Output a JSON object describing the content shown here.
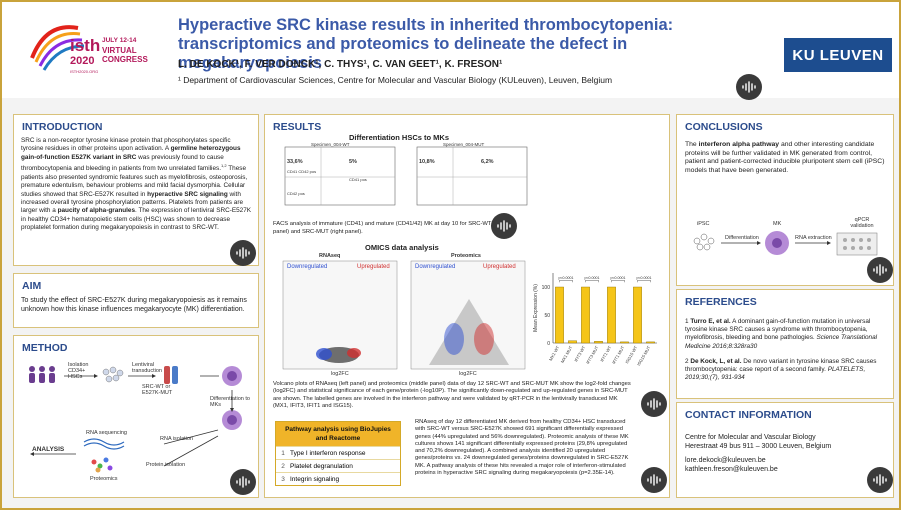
{
  "header": {
    "logo": {
      "isth": "isth",
      "year": "2020",
      "subtitle": "VIRTUAL CONGRESS",
      "dates": "JULY 12-14",
      "small": "ISTH2020.ORG"
    },
    "title_line1": "Hyperactive SRC kinase results in inherited thrombocytopenia:",
    "title_line2": "transcriptomics and proteomics to delineate the defect in megakaryopoiesis",
    "authors": "L. DE KOCK¹, F. VER DONCK¹, C. THYS¹, C. VAN GEET¹, K. FRESON¹",
    "affiliation": "¹ Department of Cardiovascular Sciences, Centre for Molecular and Vascular Biology (KULeuven), Leuven, Belgium",
    "university": "KU LEUVEN"
  },
  "introduction": {
    "heading": "INTRODUCTION",
    "body_a": "SRC is a non-receptor tyrosine kinase protein that phosphorylates specific tyrosine residues in other proteins upon activation. A ",
    "body_b": "germline heterozygous gain-of-function E527K variant in SRC",
    "body_c": " was previously found to cause thrombocytopenia and bleeding in patients from two unrelated families.",
    "body_d": "1,2",
    "body_e": " These patients also presented syndromic features such as myelofibrosis, osteoporosis, premature edentulism, behaviour problems and mild facial dysmorphia. Cellular studies showed that SRC-E527K resulted in ",
    "body_f": "hyperactive SRC signaling",
    "body_g": " with increased overall tyrosine phosphorylation patterns. Platelets from patients are larger with a ",
    "body_h": "paucity of alpha-granules",
    "body_i": ". The expression of lentiviral SRC-E527K in healthy CD34+ hematopoietic stem cells (HSC) was shown to decrease proplatelet formation during megakaryopoiesis in contrast to SRC-WT."
  },
  "aim": {
    "heading": "AIM",
    "body": "To study the effect of SRC-E527K during megakaryopoiesis as it remains unknown how this kinase influences megakaryocyte (MK) differentiation."
  },
  "method": {
    "heading": "METHOD",
    "isolation": "Isolation CD34+ HSCs",
    "lentiviral": "Lentiviral transduction",
    "constructs": "SRC-WT or E527K-MUT",
    "diff": "Differentiation to MKs",
    "rna_seq": "RNA sequencing",
    "rna_iso": "RNA isolation",
    "prot_iso": "Protein isolation",
    "analysis": "ANALYSIS",
    "proteomics": "Proteomics"
  },
  "results": {
    "heading": "RESULTS",
    "facs_title": "Differentiation HSCs to MKs",
    "facs_labels": [
      "Specimen_004-WT",
      "Specimen_004-MUT"
    ],
    "facs_pcts": [
      "33,6%",
      "5%",
      "10,8%",
      "6,2%"
    ],
    "facs_q": [
      "CD41 CD42 pos",
      "CD41 pos",
      "CD42 pos"
    ],
    "facs_caption": "FACS analysis of immature (CD41) and mature (CD41/42) MK at day 10 for SRC-WT (left panel) and SRC-MUT (right panel).",
    "omics_title": "OMICS data analysis",
    "rnaseq_title": "RNAseq",
    "proteomics_title": "Proteomics",
    "down": "Downregulated",
    "up": "Upregulated",
    "xlabel": "log2FC",
    "bar_ylabel": "Mean Expression (%)",
    "volcano_caption": "Volcano plots of RNAseq (left panel) and proteomics (middle panel) data of day 12 SRC-WT and SRC-MUT MK show the log2-fold changes (log2FC) and statistical significance of each gene/protein (-log10P). The significantly down-regulated and up-regulated genes in SRC-MUT are shown. The labelled genes are involved in the interferon pathway and were validated by qRT-PCR in the lentivirally transduced MK (MX1, IFIT3, IFIT1 and ISG15).",
    "table_title": "Pathway analysis using BioJupies and Reactome",
    "table_rows": [
      {
        "n": "1",
        "label": "Type I interferon response"
      },
      {
        "n": "2",
        "label": "Platelet degranulation"
      },
      {
        "n": "3",
        "label": "Integrin signaling"
      }
    ],
    "pathway_text": "RNAseq of day 12 differentiated MK derived from healthy CD34+ HSC transduced with SRC-WT versus SRC-E527K showed 691 significant differentially expressed genes (44% upregulated and 56% downregulated). Proteomic analysis of these MK cultures shows 141 significant differentially expressed proteins (29,8% upregulated and 70,2% downregulated). A combined analysis identified 20 upregulated genes/proteins vs. 24 downregulated genes/proteins downregulated in SRC-E527K MK. A pathway analysis of these hits revealed a major role of interferon-stimulated proteins in hyperactive SRC signaling during megakaryopoiesis (p=2.35E-14)."
  },
  "chart_data": {
    "type": "bar",
    "title": "",
    "xlabel": "",
    "ylabel": "Mean Expression (%)",
    "ylim": [
      0,
      125
    ],
    "yticks": [
      "0",
      "50",
      "100"
    ],
    "categories": [
      "MX1 WT",
      "MX1 MUT",
      "IFIT3 WT",
      "IFIT3 MUT",
      "IFIT1 WT",
      "IFIT1 MUT",
      "ISG15 WT",
      "ISG15 MUT"
    ],
    "values": [
      100,
      4,
      100,
      3,
      100,
      2,
      100,
      2
    ],
    "significance": [
      "p<0.0001",
      "p<0.0001",
      "p<0.0001",
      "p<0.0001"
    ],
    "colors": {
      "wt": "#f5c518",
      "mut": "#f5c518"
    }
  },
  "conclusions": {
    "heading": "CONCLUSIONS",
    "body_a": "The ",
    "body_b": "interferon alpha pathway",
    "body_c": " and other interesting candidate proteins will be further validated in MK generated from control, patient and patient-corrected inducible pluripotent stem cell (iPSC) models that have been generated.",
    "ipsc": "iPSC",
    "mk": "MK",
    "qpcr": "qPCR validation",
    "diff": "Differentiation",
    "rna_ext": "RNA extraction"
  },
  "references": {
    "heading": "REFERENCES",
    "r1_num": "1",
    "r1_author": "Turro E, et al.",
    "r1_text": " A dominant gain-of-function mutation in universal tyrosine kinase SRC causes a syndrome with thrombocytopenia, myelofibrosis, bleeding and bone pathologies. ",
    "r1_journal": "Science Translational Medicine 2016;8:328ra30",
    "r2_num": "2",
    "r2_author": "De Kock, L, et al.",
    "r2_text": " De novo variant in tyrosine kinase SRC causes thrombocytopenia: case report of a second family. ",
    "r2_journal": "PLATELETS, 2019;30;(7), 931-934"
  },
  "contact": {
    "heading": "CONTACT INFORMATION",
    "line1": "Centre for Molecular and Vascular Biology",
    "line2": "Herestraat 49 bus 911 – 3000 Leuven, Belgium",
    "email1": "lore.dekock@kuleuven.be",
    "email2": "kathleen.freson@kuleuven.be"
  },
  "colors": {
    "accent": "#2c4c8c",
    "gold": "#f0b429",
    "border": "#c9a33b"
  }
}
